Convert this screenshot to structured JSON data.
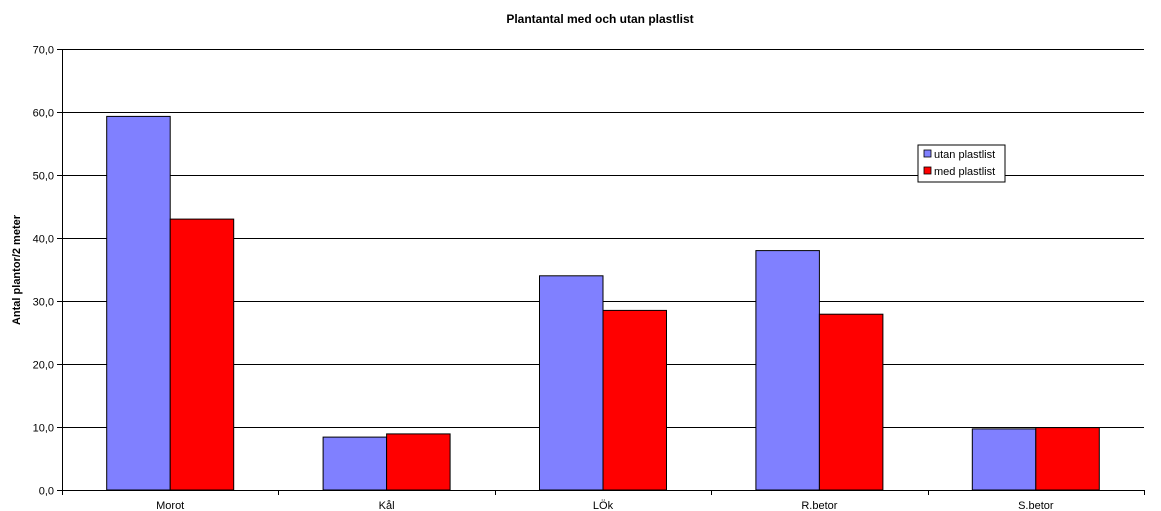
{
  "chart_data": {
    "type": "bar",
    "title": "Plantantal med och utan plastlist",
    "xlabel": "",
    "ylabel": "Antal plantor/2 meter",
    "categories": [
      "Morot",
      "Kål",
      "LÖk",
      "R.betor",
      "S.betor"
    ],
    "series": [
      {
        "name": "utan plastlist",
        "color": "#8080ff",
        "values": [
          59.3,
          8.4,
          34.0,
          38.0,
          9.7
        ]
      },
      {
        "name": "med plastlist",
        "color": "#ff0000",
        "values": [
          43.0,
          8.9,
          28.5,
          27.9,
          9.9
        ]
      }
    ],
    "ylim": [
      0,
      70
    ],
    "yticks": [
      "0,0",
      "10,0",
      "20,0",
      "30,0",
      "40,0",
      "50,0",
      "60,0",
      "70,0"
    ],
    "grid": true,
    "legend_position": "right"
  }
}
